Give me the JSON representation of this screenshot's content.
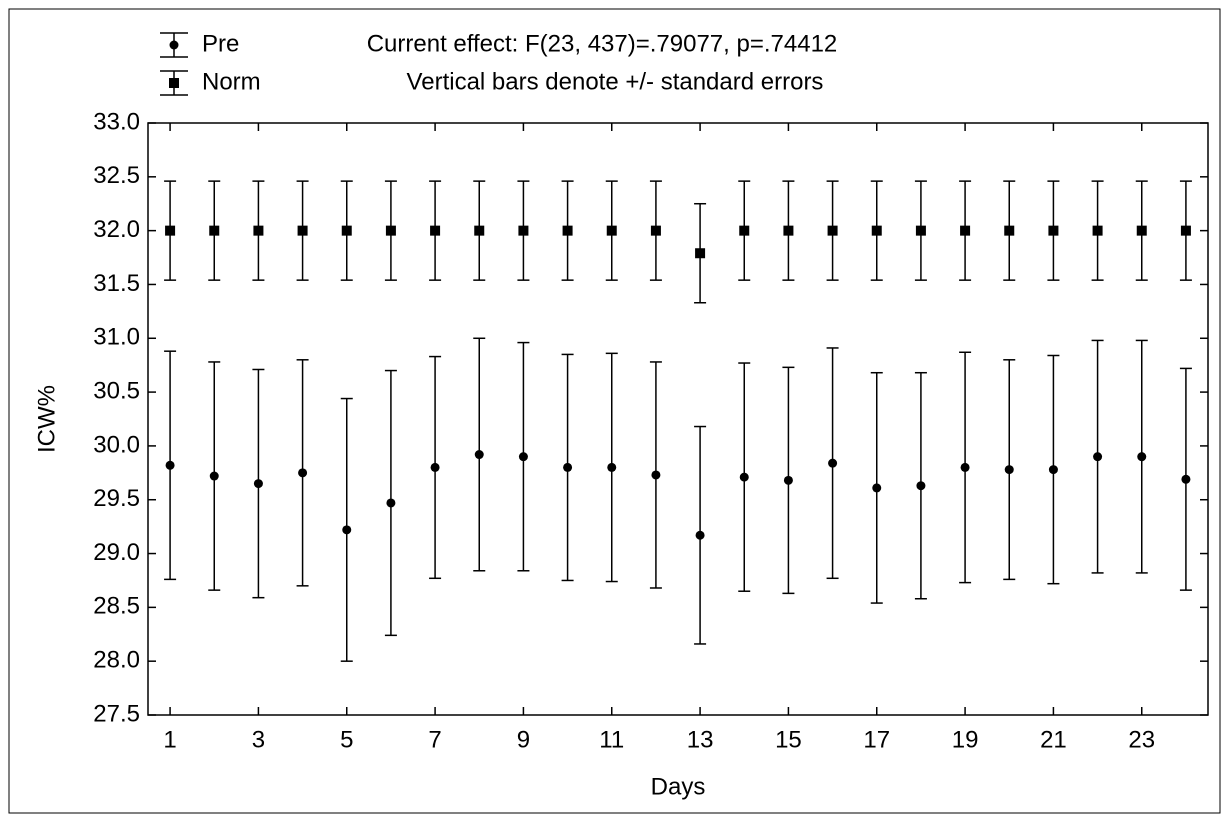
{
  "chart_data": {
    "type": "errorbar",
    "annotations": [
      "Current effect: F(23, 437)=.79077, p=.74412",
      "Vertical bars denote +/- standard errors"
    ],
    "x_label": "Days",
    "y_label": "ICW%",
    "x": [
      1,
      2,
      3,
      4,
      5,
      6,
      7,
      8,
      9,
      10,
      11,
      12,
      13,
      14,
      15,
      16,
      17,
      18,
      19,
      20,
      21,
      22,
      23,
      24
    ],
    "xlim": [
      0.5,
      24.5
    ],
    "xticks": [
      1,
      3,
      5,
      7,
      9,
      11,
      13,
      15,
      17,
      19,
      21,
      23
    ],
    "ylim": [
      27.5,
      33
    ],
    "yticks": [
      27.5,
      {
        "value": 28,
        "label": "28.0"
      },
      28.5,
      {
        "value": 29,
        "label": "29.0"
      },
      29.5,
      {
        "value": 30,
        "label": "30.0"
      },
      30.5,
      {
        "value": 31,
        "label": "31.0"
      },
      31.5,
      {
        "value": 32,
        "label": "32.0"
      },
      32.5,
      {
        "value": 33,
        "label": "33.0"
      }
    ],
    "series": [
      {
        "name": "Pre",
        "color": "#000000",
        "marker": "circle",
        "values": [
          29.82,
          29.72,
          29.65,
          29.75,
          29.22,
          29.47,
          29.8,
          29.92,
          29.9,
          29.8,
          29.8,
          29.73,
          29.17,
          29.71,
          29.68,
          29.84,
          29.61,
          29.63,
          29.8,
          29.78,
          29.78,
          29.9,
          29.9,
          29.69
        ],
        "errors": [
          1.06,
          1.06,
          1.06,
          1.05,
          1.22,
          1.23,
          1.03,
          1.08,
          1.06,
          1.05,
          1.06,
          1.05,
          1.01,
          1.06,
          1.05,
          1.07,
          1.07,
          1.05,
          1.07,
          1.02,
          1.06,
          1.08,
          1.08,
          1.03
        ]
      },
      {
        "name": "Norm",
        "color": "#000000",
        "marker": "square",
        "values": [
          32,
          32,
          32,
          32,
          32,
          32,
          32,
          32,
          32,
          32,
          32,
          32,
          31.79,
          32,
          32,
          32,
          32,
          32,
          32,
          32,
          32,
          32,
          32,
          32
        ],
        "errors": [
          0.46,
          0.46,
          0.46,
          0.46,
          0.46,
          0.46,
          0.46,
          0.46,
          0.46,
          0.46,
          0.46,
          0.46,
          0.46,
          0.46,
          0.46,
          0.46,
          0.46,
          0.46,
          0.46,
          0.46,
          0.46,
          0.46,
          0.46,
          0.46
        ]
      }
    ]
  }
}
